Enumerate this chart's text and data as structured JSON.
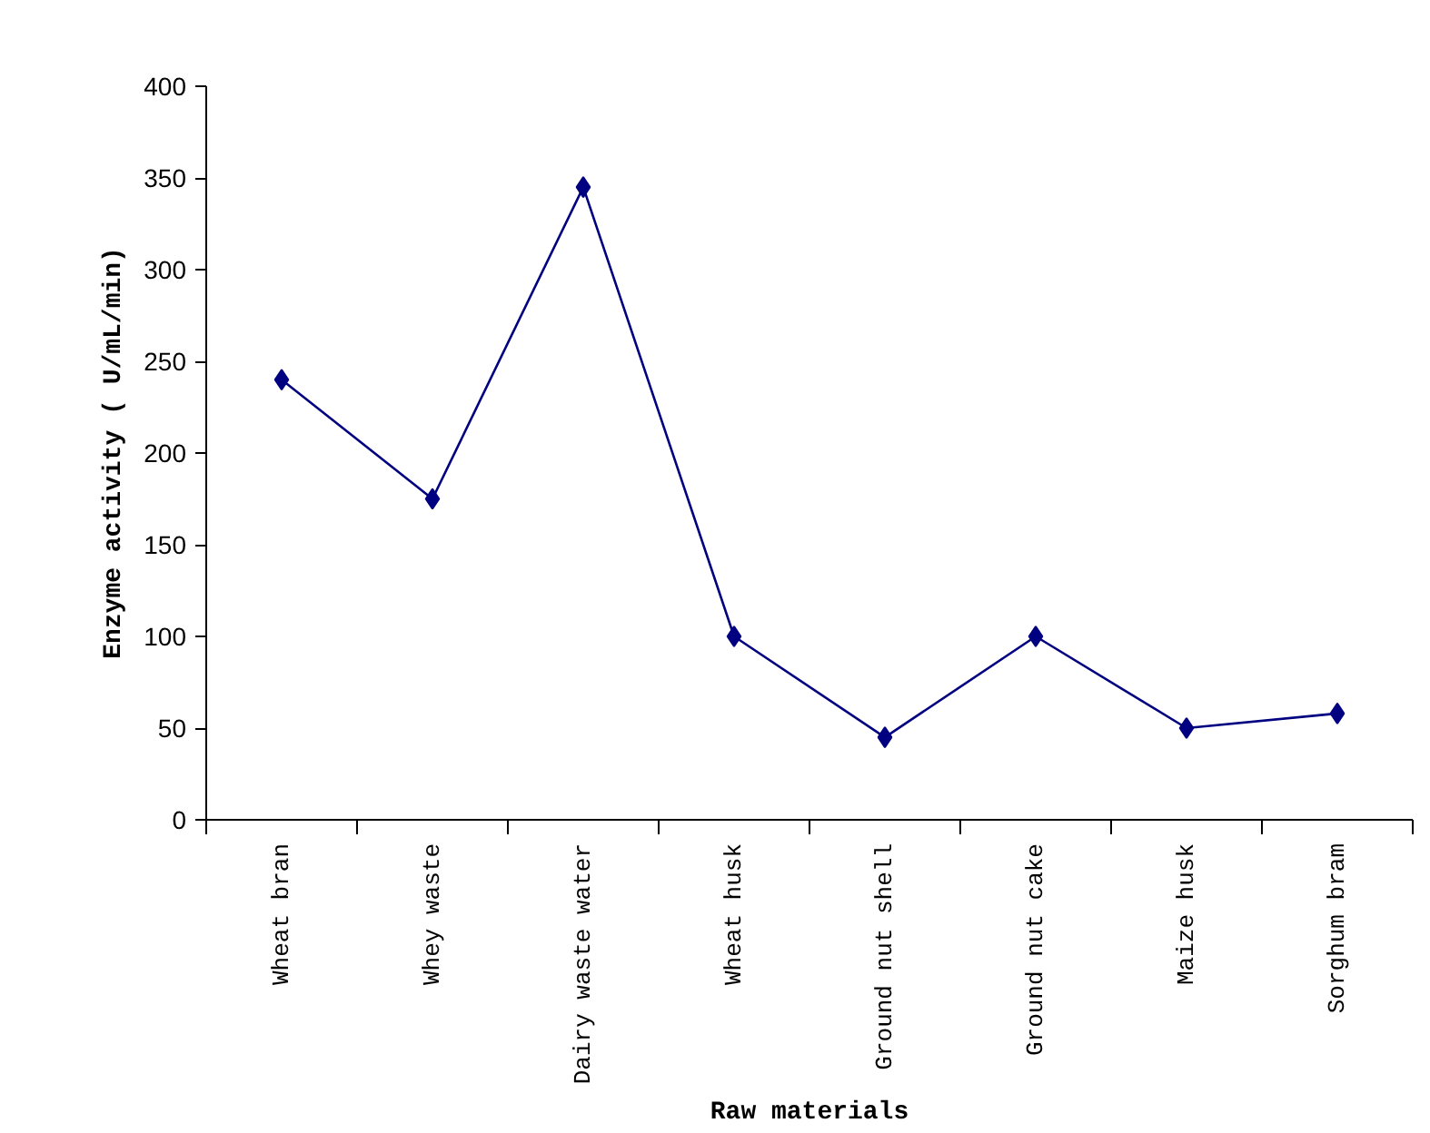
{
  "chart_data": {
    "type": "line",
    "xlabel": "Raw materials",
    "ylabel": "Enzyme activity ( U/mL/min)",
    "categories": [
      "Wheat bran",
      "Whey waste",
      "Dairy waste water",
      "Wheat husk",
      "Ground nut shell",
      "Ground nut cake",
      "Maize husk",
      "Sorghum bram"
    ],
    "series": [
      {
        "color": "#000080",
        "values": [
          240,
          175,
          345,
          100,
          45,
          100,
          50,
          58
        ]
      }
    ],
    "ylim": [
      0,
      400
    ],
    "yticks": [
      0,
      50,
      100,
      150,
      200,
      250,
      300,
      350,
      400
    ],
    "marker": "diamond",
    "line_style": "solid",
    "grid": false
  }
}
